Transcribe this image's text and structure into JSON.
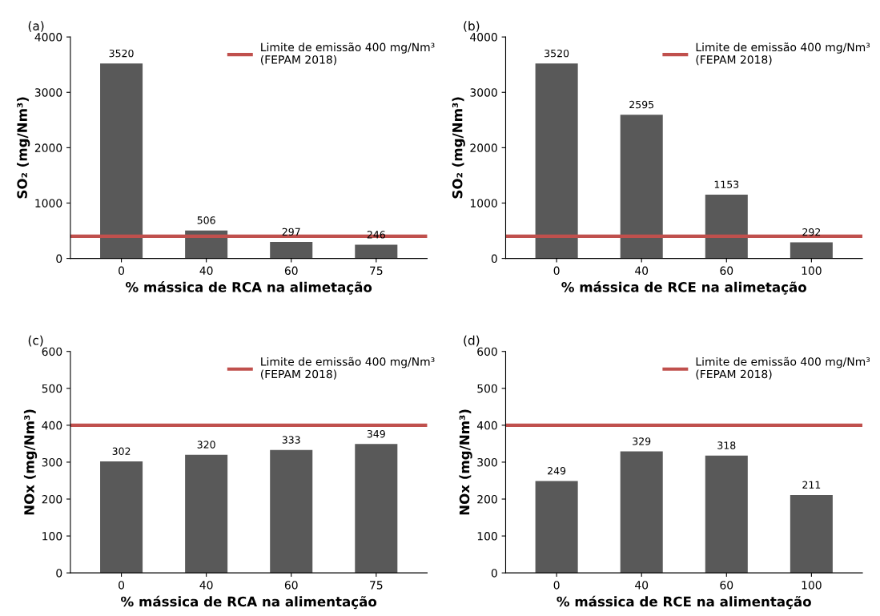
{
  "chart_data": [
    {
      "type": "bar",
      "title": "(a)",
      "xlabel": "% mássica de RCA na alimetação",
      "ylabel": "SO₂ (mg/Nm³)",
      "categories": [
        "0",
        "40",
        "60",
        "75"
      ],
      "values": [
        3520,
        506,
        297,
        246
      ],
      "color": "#595959",
      "data_labels": true,
      "ylim": [
        0,
        4000
      ],
      "yticks": [
        0,
        1000,
        2000,
        3000,
        4000
      ],
      "ref_lines": [
        {
          "axis": "y",
          "value": 400,
          "label": "Limite de emissão 400 mg/Nm³\n(FEPAM 2018)",
          "color": "#c0504d"
        }
      ],
      "legend": "top right",
      "grid": false
    },
    {
      "type": "bar",
      "title": "(b)",
      "xlabel": "% mássica de RCE na alimetação",
      "ylabel": "SO₂ (mg/Nm³)",
      "categories": [
        "0",
        "40",
        "60",
        "100"
      ],
      "values": [
        3520,
        2595,
        1153,
        292
      ],
      "color": "#595959",
      "data_labels": true,
      "ylim": [
        0,
        4000
      ],
      "yticks": [
        0,
        1000,
        2000,
        3000,
        4000
      ],
      "ref_lines": [
        {
          "axis": "y",
          "value": 400,
          "label": "Limite de emissão 400 mg/Nm³\n(FEPAM 2018)",
          "color": "#c0504d"
        }
      ],
      "legend": "top right",
      "grid": false
    },
    {
      "type": "bar",
      "title": "(c)",
      "xlabel": "% mássica de RCA na alimentação",
      "ylabel": "NOx (mg/Nm³)",
      "categories": [
        "0",
        "40",
        "60",
        "75"
      ],
      "values": [
        302,
        320,
        333,
        349
      ],
      "color": "#595959",
      "data_labels": true,
      "ylim": [
        0,
        600
      ],
      "yticks": [
        0,
        100,
        200,
        300,
        400,
        500,
        600
      ],
      "ref_lines": [
        {
          "axis": "y",
          "value": 400,
          "label": "Limite de emissão 400 mg/Nm³\n(FEPAM 2018)",
          "color": "#c0504d"
        }
      ],
      "legend": "top right",
      "grid": false
    },
    {
      "type": "bar",
      "title": "(d)",
      "xlabel": "% mássica de RCE na alimentação",
      "ylabel": "NOx (mg/Nm³)",
      "categories": [
        "0",
        "40",
        "60",
        "100"
      ],
      "values": [
        249,
        329,
        318,
        211
      ],
      "color": "#595959",
      "data_labels": true,
      "ylim": [
        0,
        600
      ],
      "yticks": [
        0,
        100,
        200,
        300,
        400,
        500,
        600
      ],
      "ref_lines": [
        {
          "axis": "y",
          "value": 400,
          "label": "Limite de emissão 400 mg/Nm³\n(FEPAM 2018)",
          "color": "#c0504d"
        }
      ],
      "legend": "top right",
      "grid": false
    }
  ]
}
